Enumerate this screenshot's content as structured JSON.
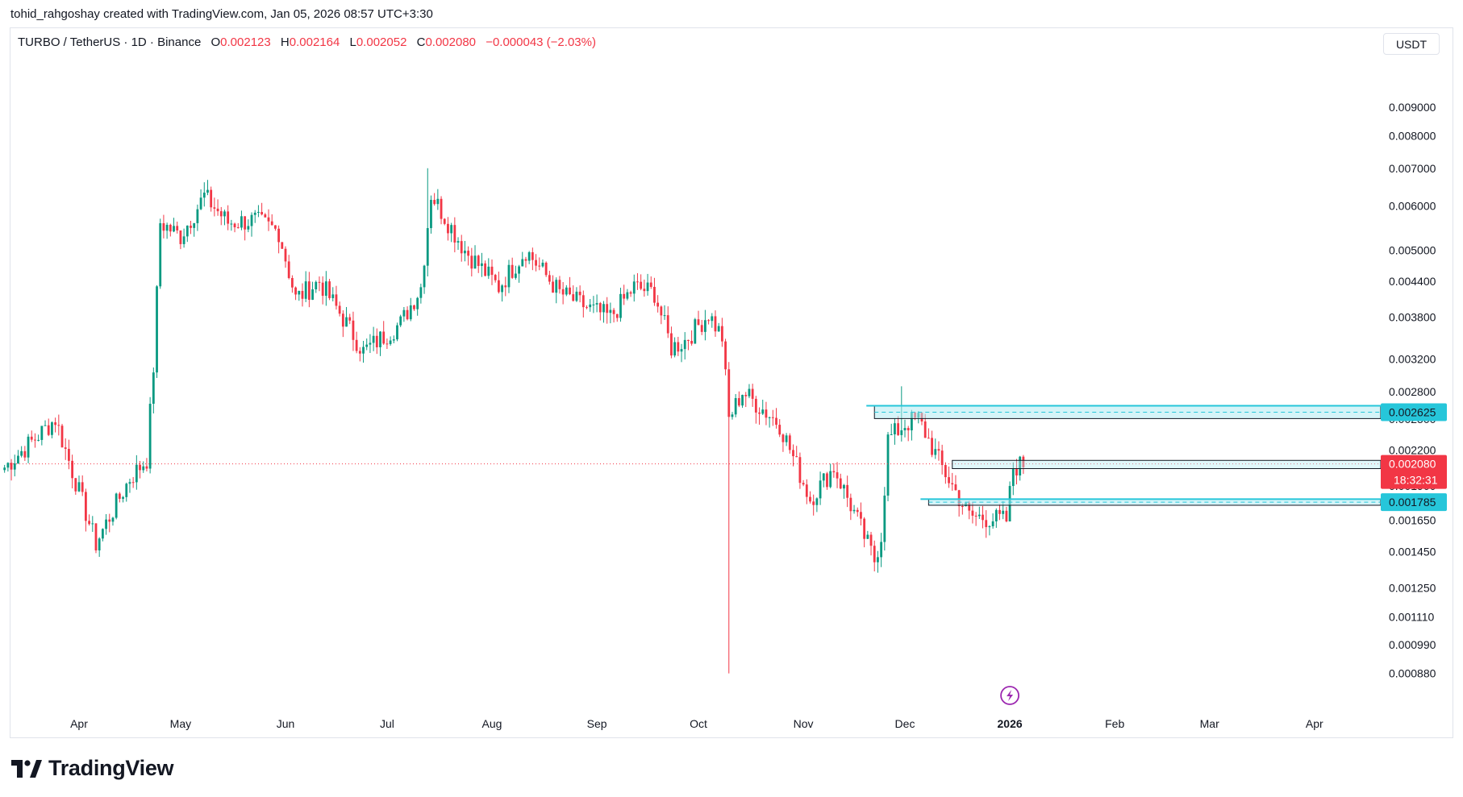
{
  "header": {
    "attribution": "tohid_rahgoshay created with TradingView.com, Jan 05, 2026 08:57 UTC+3:30"
  },
  "legend": {
    "symbol": "TURBO / TetherUS · 1D · Binance",
    "open_label": "O",
    "open": "0.002123",
    "high_label": "H",
    "high": "0.002164",
    "low_label": "L",
    "low": "0.002052",
    "close_label": "C",
    "close": "0.002080",
    "change": "−0.000043 (−2.03%)"
  },
  "currency": "USDT",
  "brand": {
    "name": "TradingView"
  },
  "colors": {
    "up": "#089981",
    "down": "#f23645",
    "zone": "#26c6da",
    "zone_fill": "#b2ebf2",
    "bolt": "#9c27b0"
  },
  "chart_data": {
    "type": "candlestick",
    "y_scale": "log",
    "ylim": [
      0.00082,
      0.0103
    ],
    "x_ticks": [
      {
        "label": "Apr",
        "date": "2025-04-01"
      },
      {
        "label": "May",
        "date": "2025-05-01"
      },
      {
        "label": "Jun",
        "date": "2025-06-01"
      },
      {
        "label": "Jul",
        "date": "2025-07-01"
      },
      {
        "label": "Aug",
        "date": "2025-08-01"
      },
      {
        "label": "Sep",
        "date": "2025-09-01"
      },
      {
        "label": "Oct",
        "date": "2025-10-01"
      },
      {
        "label": "Nov",
        "date": "2025-11-01"
      },
      {
        "label": "Dec",
        "date": "2025-12-01"
      },
      {
        "label": "2026",
        "date": "2026-01-01",
        "bold": true
      },
      {
        "label": "Feb",
        "date": "2026-02-01"
      },
      {
        "label": "Mar",
        "date": "2026-03-01"
      },
      {
        "label": "Apr",
        "date": "2026-04-01"
      }
    ],
    "y_ticks": [
      "0.009000",
      "0.008000",
      "0.007000",
      "0.006000",
      "0.005000",
      "0.004400",
      "0.003800",
      "0.003200",
      "0.002800",
      "0.002500",
      "0.002200",
      "0.001900",
      "0.001650",
      "0.001450",
      "0.001250",
      "0.001110",
      "0.000990",
      "0.000880"
    ],
    "price_label": {
      "value": 0.00208,
      "text": "0.002080",
      "countdown": "18:32:31"
    },
    "zones": [
      {
        "label": "0.002625",
        "top": 0.00264,
        "bottom": 0.002505,
        "from": "2025-11-22",
        "to_label": true
      },
      {
        "label": "0.001785",
        "top": 0.0018,
        "bottom": 0.001755,
        "from": "2025-12-08",
        "to_label": true
      }
    ],
    "zone_extra": [
      {
        "top": 0.00211,
        "bottom": 0.00204,
        "from": "2025-12-15"
      }
    ],
    "anchors": [
      {
        "date": "2025-03-10",
        "price": 0.00205
      },
      {
        "date": "2025-03-25",
        "price": 0.0025
      },
      {
        "date": "2025-04-06",
        "price": 0.0015
      },
      {
        "date": "2025-04-09",
        "price": 0.00163
      },
      {
        "date": "2025-04-16",
        "price": 0.00196
      },
      {
        "date": "2025-04-21",
        "price": 0.00212
      },
      {
        "date": "2025-04-23",
        "price": 0.0031
      },
      {
        "date": "2025-04-25",
        "price": 0.0056
      },
      {
        "date": "2025-05-01",
        "price": 0.0053
      },
      {
        "date": "2025-05-08",
        "price": 0.00625
      },
      {
        "date": "2025-05-15",
        "price": 0.0056
      },
      {
        "date": "2025-05-23",
        "price": 0.00565
      },
      {
        "date": "2025-05-30",
        "price": 0.0054
      },
      {
        "date": "2025-06-04",
        "price": 0.0041
      },
      {
        "date": "2025-06-11",
        "price": 0.0044
      },
      {
        "date": "2025-06-19",
        "price": 0.0037
      },
      {
        "date": "2025-06-24",
        "price": 0.0033
      },
      {
        "date": "2025-07-05",
        "price": 0.0037
      },
      {
        "date": "2025-07-11",
        "price": 0.0043
      },
      {
        "date": "2025-07-14",
        "price": 0.0063
      },
      {
        "date": "2025-07-24",
        "price": 0.005
      },
      {
        "date": "2025-08-03",
        "price": 0.0043
      },
      {
        "date": "2025-08-11",
        "price": 0.005
      },
      {
        "date": "2025-08-21",
        "price": 0.0042
      },
      {
        "date": "2025-08-31",
        "price": 0.0039
      },
      {
        "date": "2025-09-05",
        "price": 0.0038
      },
      {
        "date": "2025-09-12",
        "price": 0.0043
      },
      {
        "date": "2025-09-18",
        "price": 0.0042
      },
      {
        "date": "2025-09-23",
        "price": 0.00335
      },
      {
        "date": "2025-09-27",
        "price": 0.00345
      },
      {
        "date": "2025-10-04",
        "price": 0.00385
      },
      {
        "date": "2025-10-08",
        "price": 0.0035
      },
      {
        "date": "2025-10-10",
        "price": 0.0025
      },
      {
        "date": "2025-10-14",
        "price": 0.0028
      },
      {
        "date": "2025-10-25",
        "price": 0.00245
      },
      {
        "date": "2025-11-03",
        "price": 0.0018
      },
      {
        "date": "2025-11-10",
        "price": 0.00205
      },
      {
        "date": "2025-11-17",
        "price": 0.00165
      },
      {
        "date": "2025-11-22",
        "price": 0.0014
      },
      {
        "date": "2025-11-24",
        "price": 0.00155
      },
      {
        "date": "2025-11-26",
        "price": 0.0023
      },
      {
        "date": "2025-12-01",
        "price": 0.00245
      },
      {
        "date": "2025-12-05",
        "price": 0.0025
      },
      {
        "date": "2025-12-12",
        "price": 0.00205
      },
      {
        "date": "2025-12-20",
        "price": 0.00168
      },
      {
        "date": "2025-12-31",
        "price": 0.00165
      },
      {
        "date": "2026-01-02",
        "price": 0.00205
      },
      {
        "date": "2026-01-05",
        "price": 0.00208
      }
    ],
    "spikes": [
      {
        "date": "2025-10-10",
        "low": 0.00088
      },
      {
        "date": "2025-04-07",
        "low": 0.00142
      },
      {
        "date": "2025-07-13",
        "high": 0.007
      },
      {
        "date": "2025-11-30",
        "high": 0.00286
      }
    ],
    "event_marker": {
      "date": "2026-01-01",
      "icon": "lightning-icon"
    }
  }
}
